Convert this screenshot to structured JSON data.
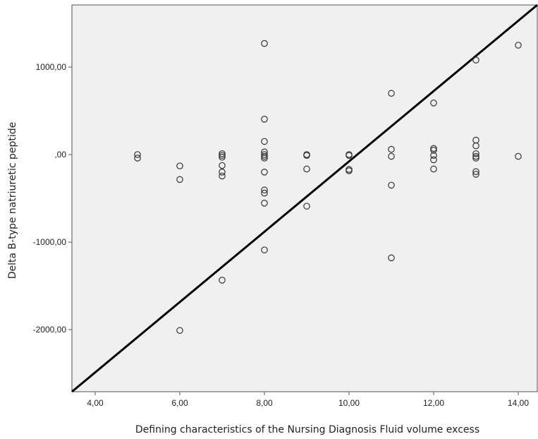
{
  "chart_data": {
    "type": "scatter",
    "title": "",
    "xlabel": "Defining characteristics of the Nursing Diagnosis Fluid volume excess",
    "ylabel": "Delta B-type natriuretic peptide",
    "xlim": [
      3.45,
      14.45
    ],
    "ylim": [
      -2710,
      1710
    ],
    "x_ticks": [
      4,
      6,
      8,
      10,
      12,
      14
    ],
    "x_tick_labels": [
      "4,00",
      "6,00",
      "8,00",
      "10,00",
      "12,00",
      "14,00"
    ],
    "y_ticks": [
      1000,
      0,
      -1000,
      -2000
    ],
    "y_tick_labels": [
      "1000,00",
      ",00",
      "-1000,00",
      "-2000,00"
    ],
    "grid": false,
    "plot_background": "#f0f0f0",
    "marker_color": "#333333",
    "fit_line": {
      "color": "#000000",
      "x": [
        3.45,
        14.45
      ],
      "y": [
        -2710,
        1710
      ]
    },
    "points": [
      {
        "x": 5,
        "y": 0
      },
      {
        "x": 5,
        "y": -40
      },
      {
        "x": 6,
        "y": -130
      },
      {
        "x": 6,
        "y": -285
      },
      {
        "x": 6,
        "y": -2010
      },
      {
        "x": 7,
        "y": 10
      },
      {
        "x": 7,
        "y": -10
      },
      {
        "x": 7,
        "y": -30
      },
      {
        "x": 7,
        "y": -125
      },
      {
        "x": 7,
        "y": -200
      },
      {
        "x": 7,
        "y": -245
      },
      {
        "x": 7,
        "y": -1435
      },
      {
        "x": 8,
        "y": 1270
      },
      {
        "x": 8,
        "y": 405
      },
      {
        "x": 8,
        "y": 150
      },
      {
        "x": 8,
        "y": 30
      },
      {
        "x": 8,
        "y": 0
      },
      {
        "x": 8,
        "y": -20
      },
      {
        "x": 8,
        "y": -40
      },
      {
        "x": 8,
        "y": -200
      },
      {
        "x": 8,
        "y": -405
      },
      {
        "x": 8,
        "y": -440
      },
      {
        "x": 8,
        "y": -555
      },
      {
        "x": 8,
        "y": -1090
      },
      {
        "x": 9,
        "y": 0
      },
      {
        "x": 9,
        "y": -10
      },
      {
        "x": 9,
        "y": -165
      },
      {
        "x": 9,
        "y": -590
      },
      {
        "x": 10,
        "y": 0
      },
      {
        "x": 10,
        "y": -10
      },
      {
        "x": 10,
        "y": -170
      },
      {
        "x": 10,
        "y": -185
      },
      {
        "x": 11,
        "y": 700
      },
      {
        "x": 11,
        "y": 60
      },
      {
        "x": 11,
        "y": -20
      },
      {
        "x": 11,
        "y": -350
      },
      {
        "x": 11,
        "y": -1180
      },
      {
        "x": 12,
        "y": 590
      },
      {
        "x": 12,
        "y": 70
      },
      {
        "x": 12,
        "y": 50
      },
      {
        "x": 12,
        "y": -10
      },
      {
        "x": 12,
        "y": -60
      },
      {
        "x": 12,
        "y": -165
      },
      {
        "x": 13,
        "y": 1080
      },
      {
        "x": 13,
        "y": 165
      },
      {
        "x": 13,
        "y": 100
      },
      {
        "x": 13,
        "y": 10
      },
      {
        "x": 13,
        "y": -20
      },
      {
        "x": 13,
        "y": -40
      },
      {
        "x": 13,
        "y": -195
      },
      {
        "x": 13,
        "y": -225
      },
      {
        "x": 14,
        "y": 1250
      },
      {
        "x": 14,
        "y": -20
      }
    ]
  }
}
